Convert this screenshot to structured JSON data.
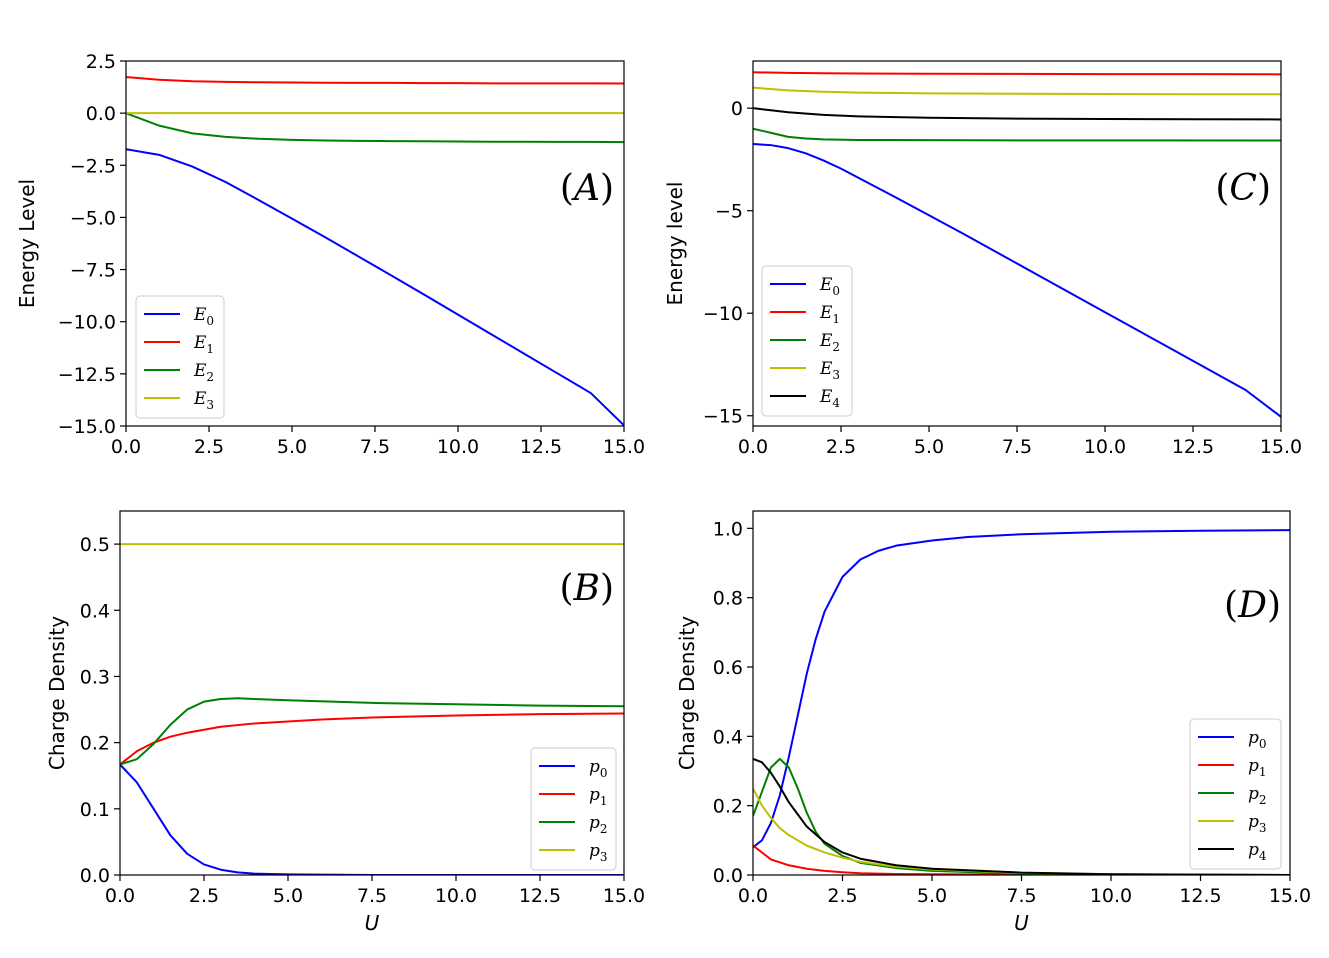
{
  "chart_data": [
    {
      "panel": "A",
      "type": "line",
      "tag": "(A)",
      "xlabel": "",
      "ylabel": "Energy Level",
      "xlim": [
        0,
        15
      ],
      "ylim": [
        -15,
        2.5
      ],
      "xticks": [
        0,
        2.5,
        5,
        7.5,
        10,
        12.5,
        15
      ],
      "yticks": [
        2.5,
        0,
        -2.5,
        -5,
        -7.5,
        -10,
        -12.5,
        -15
      ],
      "ytick_labels": [
        "2.5",
        "0.0",
        "−2.5",
        "−5.0",
        "−7.5",
        "−10.0",
        "−12.5",
        "−15.0"
      ],
      "xtick_labels": [
        "0.0",
        "2.5",
        "5.0",
        "7.5",
        "10.0",
        "12.5",
        "15.0"
      ],
      "legend": "lower-left",
      "series": [
        {
          "name": "E",
          "sub": "0",
          "color": "#0000ff",
          "x": [
            0,
            1,
            2,
            3,
            4,
            5,
            6,
            7,
            8,
            9,
            10,
            11,
            12,
            13,
            14,
            15
          ],
          "y": [
            -1.73,
            -2.0,
            -2.56,
            -3.3,
            -4.17,
            -5.06,
            -5.95,
            -6.87,
            -7.79,
            -8.72,
            -9.66,
            -10.6,
            -11.54,
            -12.48,
            -13.42,
            -14.97
          ]
        },
        {
          "name": "E",
          "sub": "1",
          "color": "#ff0000",
          "x": [
            0,
            1,
            2,
            3,
            4,
            5,
            6,
            7,
            8,
            9,
            10,
            11,
            12,
            13,
            14,
            15
          ],
          "y": [
            1.73,
            1.6,
            1.53,
            1.5,
            1.48,
            1.47,
            1.46,
            1.45,
            1.45,
            1.44,
            1.44,
            1.43,
            1.43,
            1.43,
            1.43,
            1.42
          ]
        },
        {
          "name": "E",
          "sub": "2",
          "color": "#008000",
          "x": [
            0,
            1,
            2,
            3,
            4,
            5,
            6,
            7,
            8,
            9,
            10,
            11,
            12,
            13,
            14,
            15
          ],
          "y": [
            0.0,
            -0.6,
            -0.97,
            -1.14,
            -1.23,
            -1.28,
            -1.31,
            -1.33,
            -1.34,
            -1.35,
            -1.36,
            -1.37,
            -1.37,
            -1.38,
            -1.38,
            -1.39
          ]
        },
        {
          "name": "E",
          "sub": "3",
          "color": "#bfbf00",
          "x": [
            0,
            15
          ],
          "y": [
            0.0,
            0.0
          ]
        }
      ]
    },
    {
      "panel": "C",
      "type": "line",
      "tag": "(C)",
      "xlabel": "",
      "ylabel": "Energy level",
      "xlim": [
        0,
        15
      ],
      "ylim": [
        -15.5,
        2.3
      ],
      "xticks": [
        0,
        2.5,
        5,
        7.5,
        10,
        12.5,
        15
      ],
      "yticks": [
        0,
        -5,
        -10,
        -15
      ],
      "ytick_labels": [
        "0",
        "−5",
        "−10",
        "−15"
      ],
      "xtick_labels": [
        "0.0",
        "2.5",
        "5.0",
        "7.5",
        "10.0",
        "12.5",
        "15.0"
      ],
      "legend": "lower-left",
      "series": [
        {
          "name": "E",
          "sub": "0",
          "color": "#0000ff",
          "x": [
            0,
            0.5,
            1,
            1.5,
            2,
            2.5,
            3,
            4,
            5,
            6,
            7,
            8,
            9,
            10,
            11,
            12,
            13,
            14,
            15
          ],
          "y": [
            -1.75,
            -1.8,
            -1.95,
            -2.2,
            -2.55,
            -2.95,
            -3.4,
            -4.3,
            -5.22,
            -6.15,
            -7.1,
            -8.05,
            -9.0,
            -9.95,
            -10.9,
            -11.85,
            -12.8,
            -13.75,
            -15.05
          ]
        },
        {
          "name": "E",
          "sub": "1",
          "color": "#ff0000",
          "x": [
            0,
            1,
            2,
            3,
            5,
            7.5,
            10,
            12.5,
            15
          ],
          "y": [
            1.75,
            1.72,
            1.7,
            1.69,
            1.68,
            1.67,
            1.66,
            1.66,
            1.65
          ]
        },
        {
          "name": "E",
          "sub": "2",
          "color": "#008000",
          "x": [
            0,
            0.5,
            1,
            1.5,
            2,
            3,
            5,
            7.5,
            10,
            15
          ],
          "y": [
            -1.0,
            -1.2,
            -1.4,
            -1.48,
            -1.52,
            -1.55,
            -1.56,
            -1.57,
            -1.57,
            -1.58
          ]
        },
        {
          "name": "E",
          "sub": "3",
          "color": "#bfbf00",
          "x": [
            0,
            1,
            2,
            3,
            5,
            7.5,
            10,
            12.5,
            15
          ],
          "y": [
            1.0,
            0.87,
            0.8,
            0.76,
            0.72,
            0.7,
            0.69,
            0.68,
            0.68
          ]
        },
        {
          "name": "E",
          "sub": "4",
          "color": "#000000",
          "x": [
            0,
            1,
            2,
            3,
            5,
            7.5,
            10,
            12.5,
            15
          ],
          "y": [
            0.0,
            -0.2,
            -0.33,
            -0.4,
            -0.47,
            -0.51,
            -0.53,
            -0.54,
            -0.55
          ]
        }
      ]
    },
    {
      "panel": "B",
      "type": "line",
      "tag": "(B)",
      "xlabel": "U",
      "ylabel": "Charge Density",
      "xlim": [
        0,
        15
      ],
      "ylim": [
        0,
        0.55
      ],
      "xticks": [
        0,
        2.5,
        5,
        7.5,
        10,
        12.5,
        15
      ],
      "yticks": [
        0,
        0.1,
        0.2,
        0.3,
        0.4,
        0.5
      ],
      "ytick_labels": [
        "0.0",
        "0.1",
        "0.2",
        "0.3",
        "0.4",
        "0.5"
      ],
      "xtick_labels": [
        "0.0",
        "2.5",
        "5.0",
        "7.5",
        "10.0",
        "12.5",
        "15.0"
      ],
      "legend": "lower-right",
      "series": [
        {
          "name": "p",
          "sub": "0",
          "color": "#0000ff",
          "x": [
            0,
            0.5,
            1,
            1.5,
            2,
            2.5,
            3,
            3.5,
            4,
            5,
            6,
            7.5,
            10,
            15
          ],
          "y": [
            0.167,
            0.14,
            0.1,
            0.06,
            0.032,
            0.016,
            0.008,
            0.004,
            0.002,
            0.001,
            0.0005,
            0.0,
            0.0,
            0.0
          ]
        },
        {
          "name": "p",
          "sub": "1",
          "color": "#ff0000",
          "x": [
            0,
            0.5,
            1,
            1.5,
            2,
            3,
            4,
            5,
            6,
            7.5,
            10,
            12.5,
            15
          ],
          "y": [
            0.167,
            0.187,
            0.2,
            0.209,
            0.215,
            0.224,
            0.229,
            0.232,
            0.235,
            0.238,
            0.241,
            0.243,
            0.244
          ]
        },
        {
          "name": "p",
          "sub": "2",
          "color": "#008000",
          "x": [
            0,
            0.5,
            1,
            1.5,
            2,
            2.5,
            3,
            3.5,
            4,
            5,
            7.5,
            10,
            12.5,
            15
          ],
          "y": [
            0.167,
            0.175,
            0.198,
            0.227,
            0.25,
            0.262,
            0.266,
            0.267,
            0.266,
            0.264,
            0.26,
            0.258,
            0.256,
            0.255
          ]
        },
        {
          "name": "p",
          "sub": "3",
          "color": "#bfbf00",
          "x": [
            0,
            15
          ],
          "y": [
            0.5,
            0.5
          ]
        }
      ]
    },
    {
      "panel": "D",
      "type": "line",
      "tag": "(D)",
      "xlabel": "U",
      "ylabel": "Charge Density",
      "xlim": [
        0,
        15
      ],
      "ylim": [
        0,
        1.05
      ],
      "xticks": [
        0,
        2.5,
        5,
        7.5,
        10,
        12.5,
        15
      ],
      "yticks": [
        0,
        0.2,
        0.4,
        0.6,
        0.8,
        1.0
      ],
      "ytick_labels": [
        "0.0",
        "0.2",
        "0.4",
        "0.6",
        "0.8",
        "1.0"
      ],
      "xtick_labels": [
        "0.0",
        "2.5",
        "5.0",
        "7.5",
        "10.0",
        "12.5",
        "15.0"
      ],
      "legend": "lower-right",
      "series": [
        {
          "name": "p",
          "sub": "0",
          "color": "#0000ff",
          "x": [
            0,
            0.25,
            0.5,
            0.75,
            1,
            1.25,
            1.5,
            1.75,
            2,
            2.5,
            3,
            3.5,
            4,
            5,
            6,
            7.5,
            10,
            12.5,
            15
          ],
          "y": [
            0.08,
            0.1,
            0.15,
            0.23,
            0.34,
            0.46,
            0.58,
            0.68,
            0.76,
            0.86,
            0.91,
            0.935,
            0.95,
            0.965,
            0.975,
            0.983,
            0.99,
            0.993,
            0.995
          ]
        },
        {
          "name": "p",
          "sub": "1",
          "color": "#ff0000",
          "x": [
            0,
            0.5,
            1,
            1.5,
            2,
            2.5,
            3,
            4,
            5,
            7.5,
            10,
            15
          ],
          "y": [
            0.085,
            0.045,
            0.028,
            0.018,
            0.012,
            0.008,
            0.005,
            0.003,
            0.002,
            0.001,
            0.0,
            0.0
          ]
        },
        {
          "name": "p",
          "sub": "2",
          "color": "#008000",
          "x": [
            0,
            0.25,
            0.5,
            0.75,
            1,
            1.25,
            1.5,
            1.75,
            2,
            2.5,
            3,
            4,
            5,
            7.5,
            10,
            15
          ],
          "y": [
            0.17,
            0.24,
            0.31,
            0.335,
            0.31,
            0.25,
            0.18,
            0.125,
            0.09,
            0.055,
            0.035,
            0.02,
            0.012,
            0.004,
            0.001,
            0.0
          ]
        },
        {
          "name": "p",
          "sub": "3",
          "color": "#bfbf00",
          "x": [
            0,
            0.25,
            0.5,
            0.75,
            1,
            1.5,
            2,
            2.5,
            3,
            4,
            5,
            7.5,
            10,
            15
          ],
          "y": [
            0.25,
            0.2,
            0.165,
            0.135,
            0.115,
            0.085,
            0.065,
            0.05,
            0.038,
            0.024,
            0.016,
            0.006,
            0.002,
            0.0
          ]
        },
        {
          "name": "p",
          "sub": "4",
          "color": "#000000",
          "x": [
            0,
            0.25,
            0.5,
            0.75,
            1,
            1.5,
            2,
            2.5,
            3,
            4,
            5,
            7.5,
            10,
            15
          ],
          "y": [
            0.335,
            0.325,
            0.295,
            0.255,
            0.21,
            0.14,
            0.095,
            0.065,
            0.047,
            0.028,
            0.018,
            0.007,
            0.002,
            0.0
          ]
        }
      ]
    }
  ]
}
